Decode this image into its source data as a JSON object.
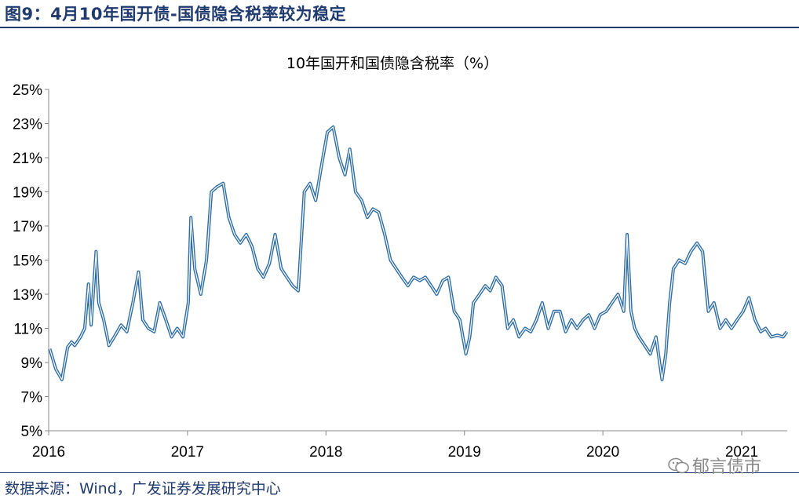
{
  "figure_title": "图9：4月10年国开债-国债隐含税率较为稳定",
  "source_text": "数据来源：Wind，广发证券发展研究中心",
  "watermark_text": "郁言债市",
  "colors": {
    "line": "#2e6da4",
    "title": "#1f3a6e"
  },
  "chart_data": {
    "type": "line",
    "title": "10年国开和国债隐含税率（%）",
    "xlabel": "",
    "ylabel": "",
    "x_tick_labels": [
      "2016",
      "2017",
      "2018",
      "2019",
      "2020",
      "2021"
    ],
    "y_tick_labels": [
      "25%",
      "23%",
      "21%",
      "19%",
      "17%",
      "15%",
      "13%",
      "11%",
      "9%",
      "7%",
      "5%"
    ],
    "ylim": [
      5,
      25
    ],
    "xlim": [
      "2016-01-01",
      "2021-05-01"
    ],
    "grid": false,
    "legend": "none",
    "series": [
      {
        "values_x": [
          "2016-01-04",
          "2016-01-20",
          "2016-02-05",
          "2016-02-20",
          "2016-03-01",
          "2016-03-10",
          "2016-03-25",
          "2016-04-05",
          "2016-04-15",
          "2016-04-22",
          "2016-05-05",
          "2016-05-12",
          "2016-05-25",
          "2016-06-08",
          "2016-06-22",
          "2016-07-10",
          "2016-07-25",
          "2016-08-10",
          "2016-08-25",
          "2016-09-05",
          "2016-09-20",
          "2016-10-05",
          "2016-10-20",
          "2016-11-05",
          "2016-11-20",
          "2016-12-05",
          "2016-12-20",
          "2017-01-03",
          "2017-01-10",
          "2017-01-20",
          "2017-02-05",
          "2017-02-20",
          "2017-03-05",
          "2017-03-20",
          "2017-04-05",
          "2017-04-20",
          "2017-05-05",
          "2017-05-20",
          "2017-06-05",
          "2017-06-20",
          "2017-07-05",
          "2017-07-20",
          "2017-08-05",
          "2017-08-20",
          "2017-09-05",
          "2017-09-20",
          "2017-10-05",
          "2017-10-20",
          "2017-11-05",
          "2017-11-20",
          "2017-12-05",
          "2017-12-20",
          "2018-01-05",
          "2018-01-20",
          "2018-02-05",
          "2018-02-20",
          "2018-03-05",
          "2018-03-20",
          "2018-04-05",
          "2018-04-20",
          "2018-05-05",
          "2018-05-20",
          "2018-06-05",
          "2018-06-20",
          "2018-07-05",
          "2018-07-20",
          "2018-08-05",
          "2018-08-20",
          "2018-09-05",
          "2018-09-20",
          "2018-10-05",
          "2018-10-20",
          "2018-11-05",
          "2018-11-20",
          "2018-12-05",
          "2018-12-20",
          "2019-01-05",
          "2019-01-15",
          "2019-01-25",
          "2019-02-10",
          "2019-02-25",
          "2019-03-10",
          "2019-03-25",
          "2019-04-10",
          "2019-04-25",
          "2019-05-10",
          "2019-05-25",
          "2019-06-10",
          "2019-06-25",
          "2019-07-10",
          "2019-07-25",
          "2019-08-10",
          "2019-08-25",
          "2019-09-10",
          "2019-09-25",
          "2019-10-10",
          "2019-10-25",
          "2019-11-10",
          "2019-11-25",
          "2019-12-10",
          "2019-12-25",
          "2020-01-10",
          "2020-01-25",
          "2020-02-10",
          "2020-02-25",
          "2020-03-05",
          "2020-03-15",
          "2020-03-25",
          "2020-04-05",
          "2020-04-20",
          "2020-05-05",
          "2020-05-20",
          "2020-06-05",
          "2020-06-15",
          "2020-06-25",
          "2020-07-05",
          "2020-07-20",
          "2020-08-05",
          "2020-08-20",
          "2020-09-05",
          "2020-09-20",
          "2020-10-05",
          "2020-10-20",
          "2020-11-05",
          "2020-11-20",
          "2020-12-05",
          "2020-12-20",
          "2021-01-05",
          "2021-01-20",
          "2021-02-05",
          "2021-02-20",
          "2021-03-05",
          "2021-03-20",
          "2021-04-05",
          "2021-04-20",
          "2021-04-30"
        ],
        "values": [
          9.8,
          8.6,
          8.0,
          9.9,
          10.2,
          10.0,
          10.5,
          11.0,
          13.6,
          11.2,
          15.5,
          12.5,
          11.5,
          10.0,
          10.5,
          11.2,
          10.8,
          12.5,
          14.3,
          11.5,
          11.0,
          10.8,
          12.5,
          11.5,
          10.5,
          11.0,
          10.5,
          12.5,
          17.5,
          14.5,
          13.0,
          15.0,
          19.0,
          19.3,
          19.5,
          17.5,
          16.5,
          16.0,
          16.5,
          15.8,
          14.5,
          14.0,
          14.8,
          16.5,
          14.5,
          14.0,
          13.5,
          13.2,
          19.0,
          19.5,
          18.5,
          20.5,
          22.5,
          22.8,
          21.0,
          20.0,
          21.5,
          19.0,
          18.5,
          17.5,
          18.0,
          17.8,
          16.5,
          15.0,
          14.5,
          14.0,
          13.5,
          14.0,
          13.8,
          14.0,
          13.5,
          13.0,
          13.8,
          14.0,
          12.0,
          11.5,
          9.5,
          10.5,
          12.5,
          13.0,
          13.5,
          13.2,
          14.0,
          13.5,
          11.0,
          11.5,
          10.5,
          11.0,
          10.8,
          11.5,
          12.5,
          11.0,
          12.0,
          12.0,
          10.8,
          11.5,
          11.0,
          11.5,
          11.8,
          11.0,
          11.8,
          12.0,
          12.5,
          13.0,
          12.0,
          16.5,
          12.0,
          11.0,
          10.5,
          10.0,
          9.5,
          10.5,
          8.0,
          9.5,
          12.5,
          14.5,
          15.0,
          14.8,
          15.5,
          16.0,
          15.5,
          12.0,
          12.5,
          11.0,
          11.5,
          11.0,
          11.5,
          12.0,
          12.8,
          11.5,
          10.8,
          11.0,
          10.5,
          10.6,
          10.5,
          10.8
        ]
      }
    ]
  }
}
